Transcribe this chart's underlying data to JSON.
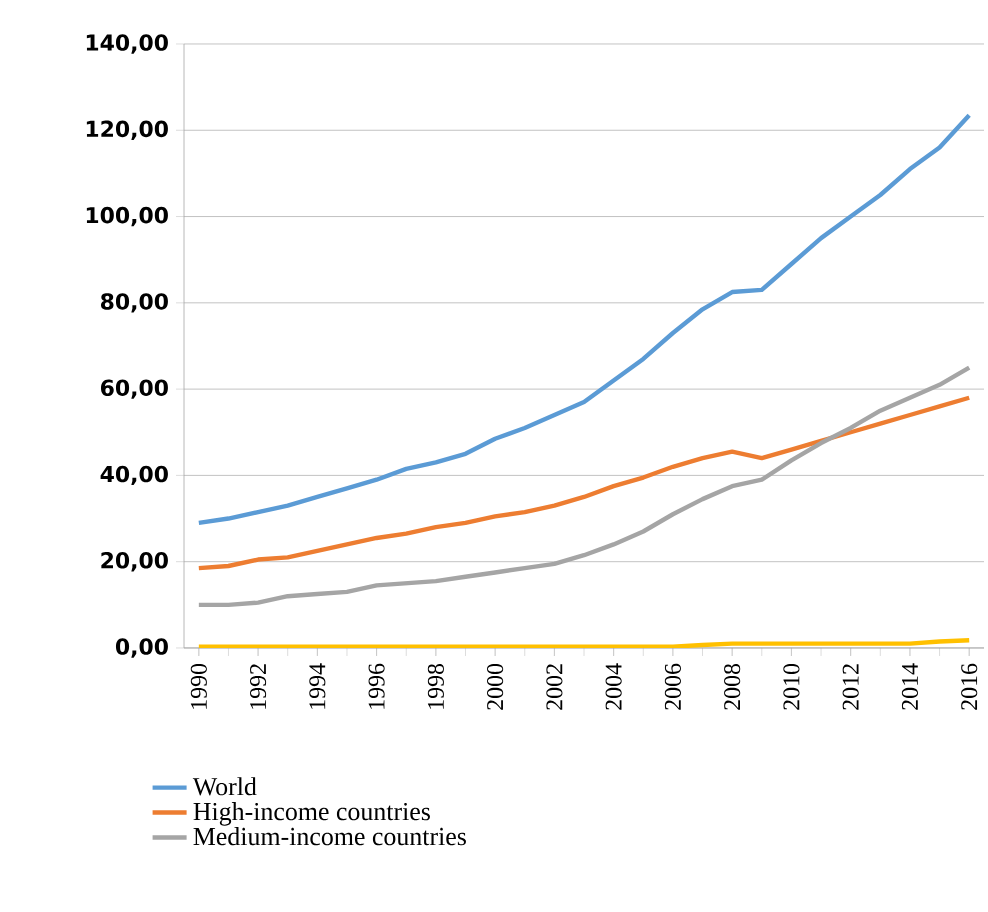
{
  "chart_data": {
    "type": "line",
    "categories": [
      "1990",
      null,
      "1992",
      null,
      "1994",
      null,
      "1996",
      null,
      "1998",
      null,
      "2000",
      null,
      "2002",
      null,
      "2004",
      null,
      "2006",
      null,
      "2008",
      null,
      "2010",
      null,
      "2012",
      null,
      "2014",
      null,
      "2016"
    ],
    "series": [
      {
        "name": "World",
        "color": "#5b9bd5",
        "values": [
          29,
          30,
          31.5,
          33,
          35,
          37,
          39,
          41.5,
          43,
          45,
          48.5,
          51,
          54,
          57,
          62,
          67,
          73,
          78.5,
          82.5,
          83,
          89,
          95,
          100,
          105,
          111,
          116,
          123.5
        ]
      },
      {
        "name": "High-income countries",
        "color": "#ed7d31",
        "values": [
          18.5,
          19,
          20.5,
          21,
          22.5,
          24,
          25.5,
          26.5,
          28,
          29,
          30.5,
          31.5,
          33,
          35,
          37.5,
          39.5,
          42,
          44,
          45.5,
          44,
          46,
          48,
          50,
          52,
          54,
          56,
          58
        ]
      },
      {
        "name": "Medium-income countries",
        "color": "#a5a5a5",
        "values": [
          10,
          10,
          10.5,
          12,
          12.5,
          13,
          14.5,
          15,
          15.5,
          16.5,
          17.5,
          18.5,
          19.5,
          21.5,
          24,
          27,
          31,
          34.5,
          37.5,
          39,
          43.5,
          47.5,
          51,
          55,
          58,
          61,
          65
        ]
      },
      {
        "color": "#ffc000",
        "values": [
          0.3,
          0.3,
          0.3,
          0.3,
          0.3,
          0.3,
          0.3,
          0.3,
          0.3,
          0.3,
          0.3,
          0.3,
          0.3,
          0.3,
          0.3,
          0.3,
          0.3,
          0.7,
          1,
          1,
          1,
          1,
          1,
          1,
          1,
          1.5,
          1.8
        ]
      }
    ],
    "ylim": [
      0,
      140
    ],
    "yticks": [
      {
        "value": 0,
        "label": "0,00"
      },
      {
        "value": 20,
        "label": "20,00"
      },
      {
        "value": 40,
        "label": "40,00"
      },
      {
        "value": 60,
        "label": "60,00"
      },
      {
        "value": 80,
        "label": "80,00"
      },
      {
        "value": 100,
        "label": "100,00"
      },
      {
        "value": 120,
        "label": "120,00"
      },
      {
        "value": 140,
        "label": "140,00"
      }
    ],
    "grid": "y",
    "legend": "bottom",
    "marker": "none",
    "line_style": "solid"
  }
}
